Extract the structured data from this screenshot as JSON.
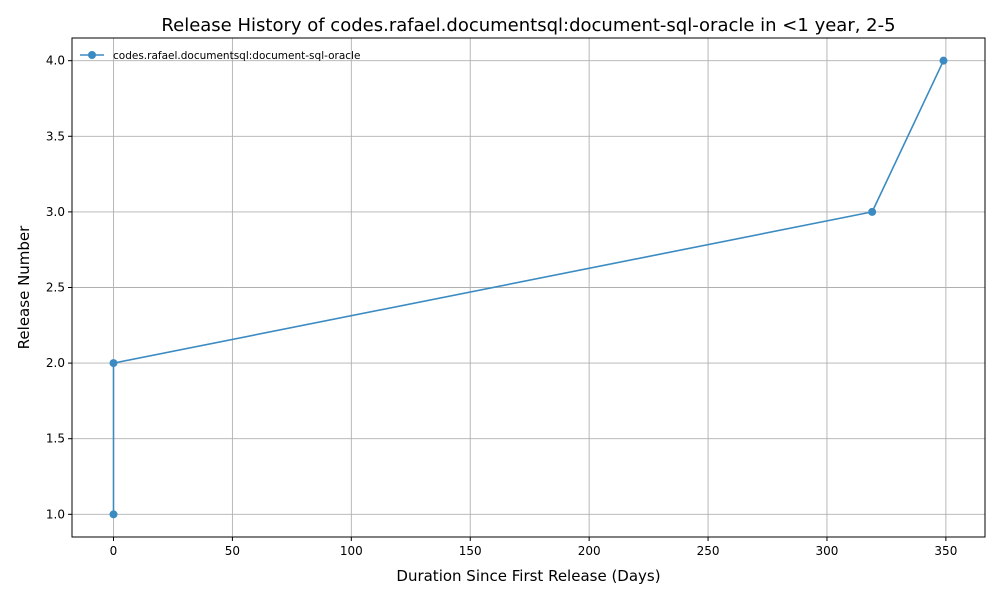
{
  "chart_data": {
    "type": "line",
    "title": "Release History of codes.rafael.documentsql:document-sql-oracle in <1 year, 2-5",
    "xlabel": "Duration Since First Release (Days)",
    "ylabel": "Release Number",
    "xlim": [
      -17.45,
      366.45
    ],
    "ylim": [
      0.85,
      4.15
    ],
    "xticks": [
      0,
      50,
      100,
      150,
      200,
      250,
      300,
      350
    ],
    "yticks": [
      1.0,
      1.5,
      2.0,
      2.5,
      3.0,
      3.5,
      4.0
    ],
    "xtick_labels": [
      "0",
      "50",
      "100",
      "150",
      "200",
      "250",
      "300",
      "350"
    ],
    "ytick_labels": [
      "1.0",
      "1.5",
      "2.0",
      "2.5",
      "3.0",
      "3.5",
      "4.0"
    ],
    "grid": true,
    "legend_position": "top-left",
    "colors": {
      "series": "#3b8bc2"
    },
    "series": [
      {
        "name": "codes.rafael.documentsql:document-sql-oracle",
        "x": [
          0,
          0,
          319,
          349
        ],
        "y": [
          1,
          2,
          3,
          4
        ]
      }
    ]
  }
}
